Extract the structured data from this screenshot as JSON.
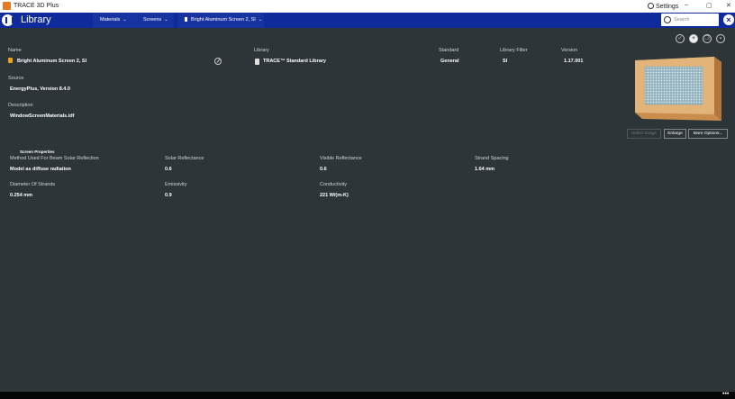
{
  "window": {
    "app_title": "TRACE 3D Plus",
    "settings_label": "Settings",
    "minimize": "–",
    "maximize": "▢",
    "close": "✕"
  },
  "header": {
    "section_title": "Library",
    "breadcrumbs": [
      {
        "label": "Materials"
      },
      {
        "label": "Screens"
      },
      {
        "label": "Bright Aluminum Screen 2, SI"
      }
    ],
    "search_placeholder": "Search"
  },
  "details": {
    "name_label": "Name",
    "name_value": "Bright Aluminum Screen 2, SI",
    "library_label": "Library",
    "library_value": "TRACE™ Standard Library",
    "standard_label": "Standard",
    "standard_value": "General",
    "library_filter_label": "Library Filter",
    "library_filter_value": "SI",
    "version_label": "Version",
    "version_value": "1.17.001",
    "source_label": "Source",
    "source_value": "EnergyPlus, Version 8.4.0",
    "description_label": "Description",
    "description_value": "WindowScreenMaterials.idf"
  },
  "image_buttons": {
    "select_image": "Select Image",
    "enlarge": "Enlarge",
    "more_options": "More Options..."
  },
  "screen_properties": {
    "title": "Screen Properties",
    "items": [
      {
        "label": "Method Used For Beam Solar Reflection",
        "value": "Model as diffuse radiation"
      },
      {
        "label": "Solar Reflectance",
        "value": "0.6"
      },
      {
        "label": "Visible Reflectance",
        "value": "0.6"
      },
      {
        "label": "Strand Spacing",
        "value": "1.64 mm"
      },
      {
        "label": "Diameter Of Strands",
        "value": "0.254 mm"
      },
      {
        "label": "Emissivity",
        "value": "0.9"
      },
      {
        "label": "Conductivity",
        "value": "221 W/(m-K)"
      }
    ]
  },
  "footer": {
    "more_dots": "•••"
  },
  "colors": {
    "background": "#2e3538",
    "header_blue": "#0f2a9b",
    "lock_accent": "#e8a317",
    "app_icon": "#e87722"
  },
  "icons": [
    "app-icon",
    "settings-icon",
    "library-icon",
    "search-icon",
    "close-icon",
    "lock-icon",
    "edit-icon",
    "database-icon",
    "check-icon",
    "add-icon",
    "copy-icon",
    "delete-icon",
    "chevron-down-icon"
  ]
}
